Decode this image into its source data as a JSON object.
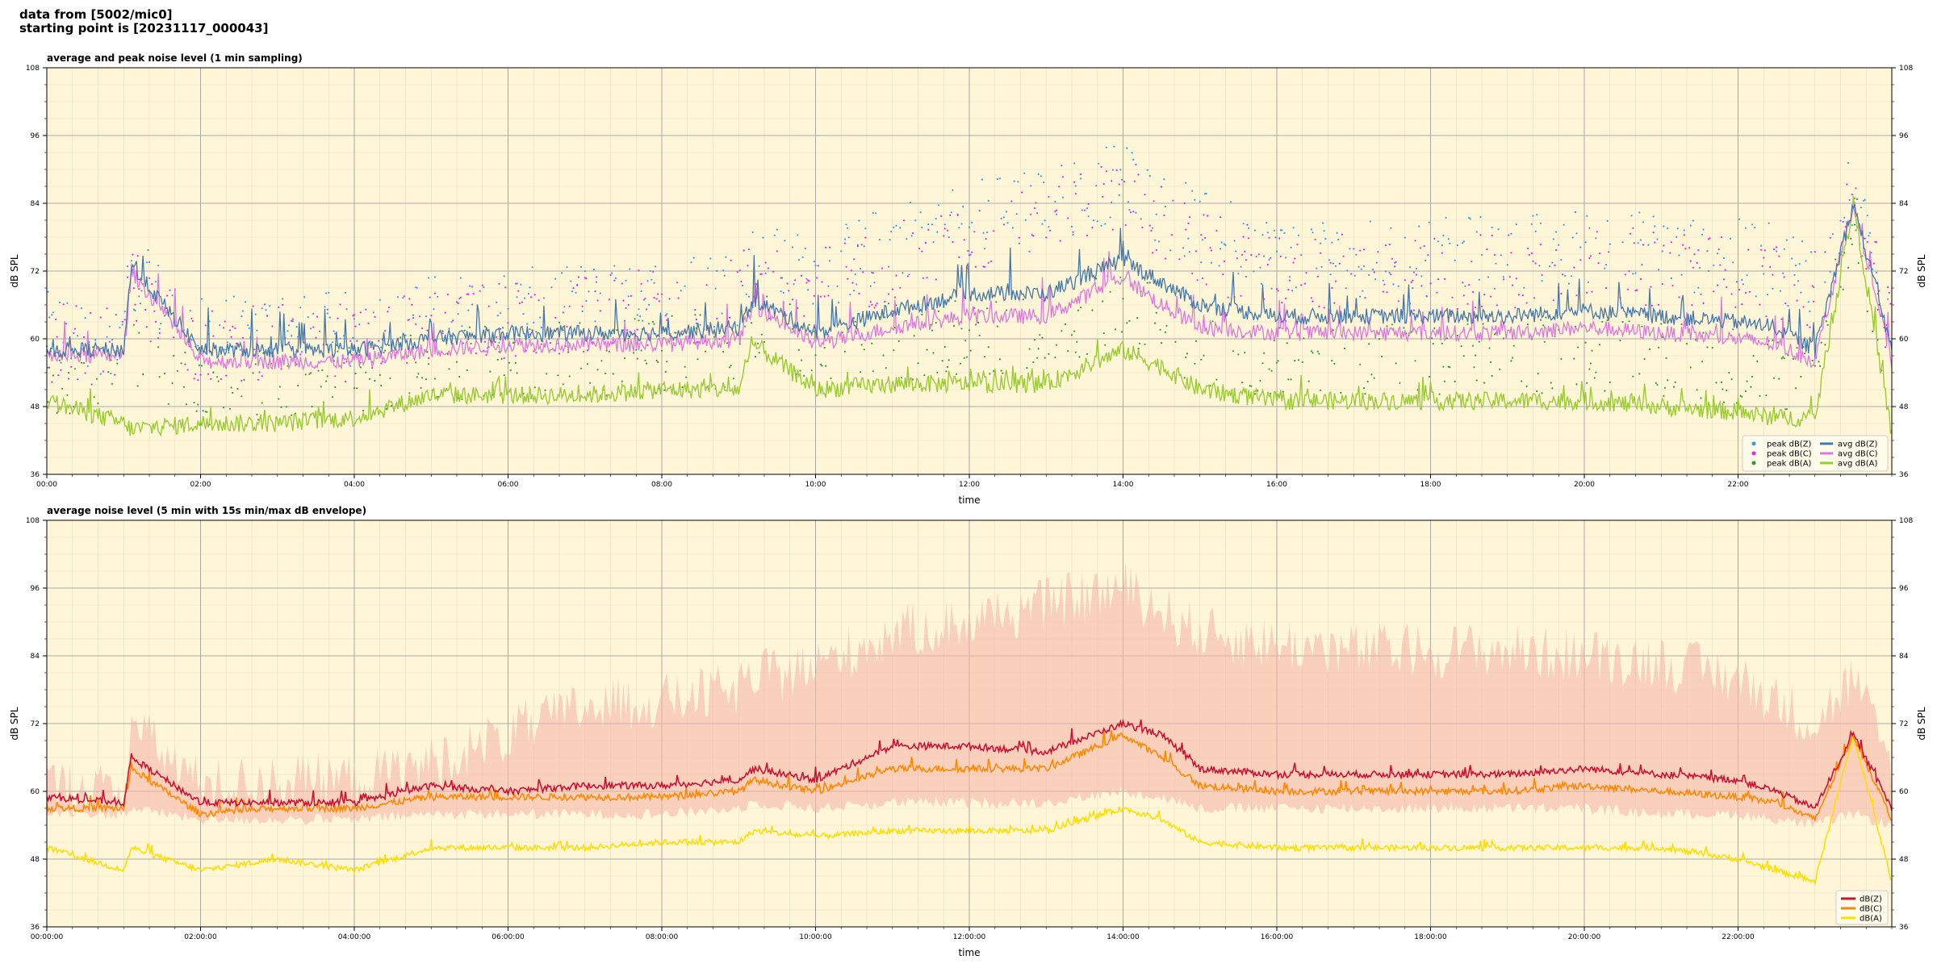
{
  "header": {
    "line1": "data from [5002/mic0]",
    "line2": "starting point is [20231117_000043]"
  },
  "colors": {
    "plot_bg": "#fff6d8",
    "peak_z": "#3399ff",
    "peak_c": "#ee22ee",
    "peak_a": "#339933",
    "avg_z": "#4477aa",
    "avg_c": "#dd77dd",
    "avg_a": "#99cc33",
    "dbz": "#cc1133",
    "dbc": "#ff8800",
    "dba": "#ffdd00",
    "envelope": "#f5b8a8"
  },
  "chart_data": [
    {
      "type": "line",
      "title": "average and peak noise level (1 min sampling)",
      "xlabel": "time",
      "ylabel": "dB SPL",
      "ylim": [
        36,
        108
      ],
      "yticks": [
        36,
        48,
        60,
        72,
        84,
        96,
        108
      ],
      "xlim_hours": [
        0,
        24
      ],
      "xtick_labels": [
        "00:00",
        "02:00",
        "04:00",
        "06:00",
        "08:00",
        "10:00",
        "12:00",
        "14:00",
        "16:00",
        "18:00",
        "20:00",
        "22:00"
      ],
      "grid": true,
      "legend_position": "bottom-right",
      "legend": [
        "peak dB(Z)",
        "peak dB(C)",
        "peak dB(A)",
        "avg dB(Z)",
        "avg dB(C)",
        "avg dB(A)"
      ],
      "hours": [
        0,
        1,
        1.1,
        2,
        3,
        4,
        5,
        6,
        7,
        8,
        9,
        9.2,
        10,
        11,
        12,
        13,
        14,
        14.5,
        15,
        16,
        17,
        18,
        19,
        20,
        21,
        22,
        22.5,
        23,
        23.5,
        24
      ],
      "series": [
        {
          "name": "avg dB(Z)",
          "values": [
            58,
            58,
            73,
            58,
            58,
            58,
            60,
            61,
            61,
            61,
            62,
            67,
            61,
            65,
            68,
            68,
            74,
            70,
            66,
            64,
            64,
            64,
            64,
            65,
            64,
            63,
            62,
            58,
            84,
            58
          ]
        },
        {
          "name": "avg dB(C)",
          "values": [
            57,
            57,
            72,
            56,
            56,
            56,
            58,
            59,
            59,
            59,
            60,
            66,
            59,
            62,
            64,
            64,
            71,
            66,
            62,
            61,
            61,
            61,
            61,
            62,
            61,
            60,
            59,
            56,
            84,
            56
          ]
        },
        {
          "name": "avg dB(A)",
          "values": [
            49,
            45,
            44,
            45,
            45,
            46,
            50,
            50,
            50,
            51,
            51,
            59,
            51,
            52,
            52,
            52,
            58,
            55,
            51,
            49,
            49,
            49,
            49,
            49,
            48,
            47,
            46,
            46,
            84,
            43
          ]
        },
        {
          "name": "peak dB(Z)",
          "values": [
            60,
            59,
            70,
            59,
            60,
            60,
            63,
            64,
            65,
            66,
            68,
            72,
            70,
            76,
            80,
            82,
            87,
            82,
            78,
            74,
            73,
            73,
            74,
            75,
            74,
            73,
            72,
            70,
            85,
            63
          ]
        },
        {
          "name": "peak dB(C)",
          "values": [
            58,
            57,
            68,
            57,
            58,
            58,
            61,
            62,
            63,
            64,
            66,
            70,
            68,
            72,
            76,
            79,
            85,
            79,
            74,
            71,
            70,
            70,
            71,
            72,
            71,
            70,
            69,
            67,
            84,
            60
          ]
        },
        {
          "name": "peak dB(A)",
          "values": [
            52,
            50,
            55,
            50,
            51,
            51,
            54,
            55,
            55,
            56,
            57,
            62,
            57,
            58,
            59,
            60,
            64,
            61,
            57,
            55,
            55,
            55,
            55,
            56,
            55,
            54,
            53,
            52,
            80,
            50
          ]
        }
      ]
    },
    {
      "type": "line",
      "title": "average noise level (5 min with 15s min/max dB envelope)",
      "xlabel": "time",
      "ylabel": "dB SPL",
      "ylim": [
        36,
        108
      ],
      "yticks": [
        36,
        48,
        60,
        72,
        84,
        96,
        108
      ],
      "xlim_hours": [
        0,
        24
      ],
      "xtick_labels": [
        "00:00:00",
        "02:00:00",
        "04:00:00",
        "06:00:00",
        "08:00:00",
        "10:00:00",
        "12:00:00",
        "14:00:00",
        "16:00:00",
        "18:00:00",
        "20:00:00",
        "22:00:00"
      ],
      "grid": true,
      "legend_position": "bottom-right",
      "legend": [
        "dB(Z)",
        "dB(C)",
        "dB(A)"
      ],
      "hours": [
        0,
        1,
        1.1,
        2,
        3,
        4,
        5,
        6,
        7,
        8,
        9,
        9.2,
        10,
        11,
        12,
        13,
        14,
        14.5,
        15,
        16,
        17,
        18,
        19,
        20,
        21,
        22,
        22.5,
        23,
        23.5,
        24
      ],
      "series": [
        {
          "name": "dB(Z)",
          "values": [
            59,
            58,
            66,
            58,
            58,
            58,
            61,
            60,
            61,
            61,
            62,
            64,
            62,
            68,
            68,
            67,
            72,
            70,
            64,
            63,
            63,
            63,
            63,
            64,
            63,
            62,
            60,
            57,
            70,
            57
          ]
        },
        {
          "name": "dB(C)",
          "values": [
            57,
            57,
            64,
            56,
            57,
            57,
            59,
            59,
            59,
            59,
            60,
            62,
            60,
            64,
            64,
            64,
            70,
            66,
            61,
            60,
            60,
            60,
            60,
            61,
            60,
            59,
            58,
            55,
            70,
            55
          ]
        },
        {
          "name": "dB(A)",
          "values": [
            50,
            46,
            50,
            46,
            48,
            46,
            50,
            50,
            50,
            51,
            51,
            53,
            52,
            53,
            53,
            53,
            57,
            55,
            51,
            50,
            50,
            50,
            50,
            50,
            50,
            48,
            46,
            44,
            70,
            44
          ]
        },
        {
          "name": "max envelope",
          "values": [
            61,
            60,
            72,
            61,
            62,
            62,
            65,
            70,
            75,
            76,
            78,
            80,
            82,
            88,
            90,
            93,
            96,
            92,
            88,
            86,
            85,
            85,
            85,
            84,
            83,
            80,
            76,
            72,
            80,
            64
          ]
        },
        {
          "name": "min envelope",
          "values": [
            56,
            56,
            57,
            55,
            55,
            55,
            56,
            56,
            56,
            56,
            57,
            58,
            57,
            58,
            58,
            58,
            60,
            59,
            57,
            57,
            57,
            57,
            57,
            57,
            56,
            56,
            55,
            54,
            56,
            54
          ]
        }
      ]
    }
  ]
}
